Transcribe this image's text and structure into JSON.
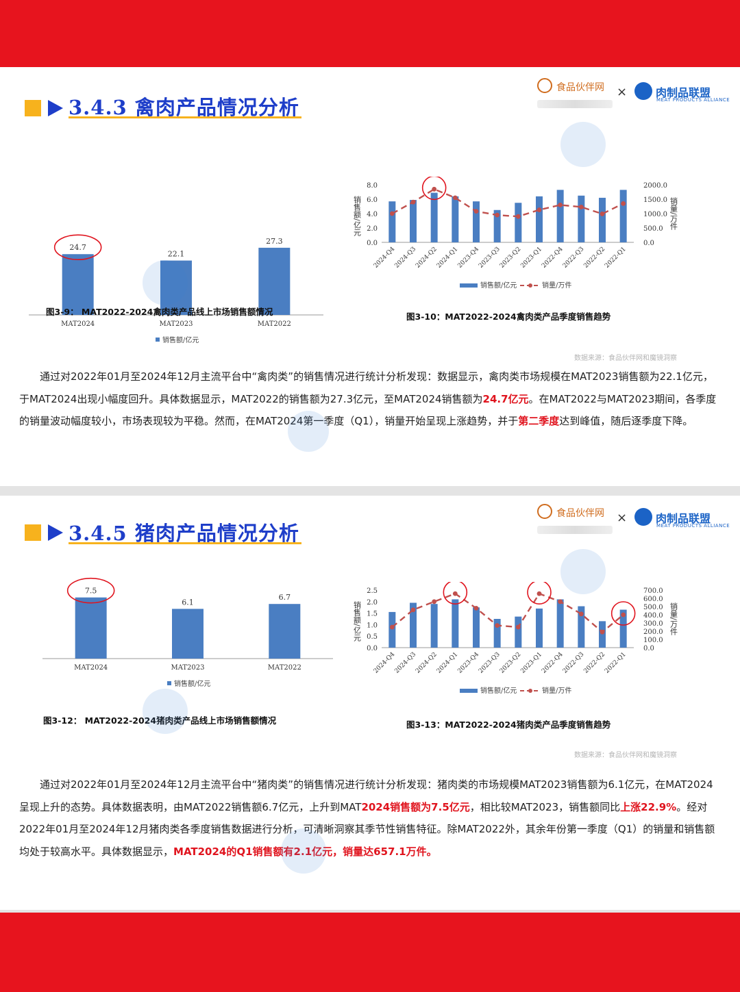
{
  "brand": {
    "partner1": "食品伙伴网",
    "partner2": "肉制品联盟",
    "partner2_en": "MEAT PRODUCTS ALLIANCE",
    "cross": "×"
  },
  "sections": [
    {
      "title": "3.4.3 禽肉产品情况分析",
      "bar_caption": "图3-9： MAT2022-2024禽肉类产品线上市场销售额情况",
      "trend_caption": "图3-10：MAT2022-2024禽肉类产品季度销售趋势",
      "source": "数据来源：食品伙伴网和魔镜洞察"
    },
    {
      "title": "3.4.5 猪肉产品情况分析",
      "bar_caption": "图3-12： MAT2022-2024猪肉类产品线上市场销售额情况",
      "trend_caption": "图3-13：MAT2022-2024猪肉类产品季度销售趋势",
      "source": "数据来源：食品伙伴网和魔镜洞察"
    }
  ],
  "paragraphs": {
    "poultry": [
      {
        "t": "通过对2022年01月至2024年12月主流平台中“禽肉类”的销售情况进行统计分析发现：数据显示，禽肉类市场规模在MAT2023销售额为22.1亿元，于MAT2024出现小幅度回升。具体数据显示，MAT2022的销售额为27.3亿元，至MAT2024销售额为"
      },
      {
        "t": "24.7亿元",
        "red": true
      },
      {
        "t": "。在MAT2022与MAT2023期间，各季度的销量波动幅度较小，市场表现较为平稳。然而，在MAT2024第一季度（Q1），销量开始呈现上涨趋势，并于"
      },
      {
        "t": "第二季度",
        "red": true
      },
      {
        "t": "达到峰值，随后逐季度下降。"
      }
    ],
    "pork": [
      {
        "t": "通过对2022年01月至2024年12月主流平台中“猪肉类”的销售情况进行统计分析发现：猪肉类的市场规模MAT2023销售额为6.1亿元，在MAT2024呈现上升的态势。具体数据表明，由MAT2022销售额6.7亿元，上升到MAT"
      },
      {
        "t": "2024销售额为7.5亿元",
        "red": true
      },
      {
        "t": "，相比较MAT2023，销售额同比"
      },
      {
        "t": "上涨22.9%",
        "red": true
      },
      {
        "t": "。经对2022年01月至2024年12月猪肉类各季度销售数据进行分析，可清晰洞察其季节性销售特征。除MAT2022外，其余年份第一季度（Q1）的销量和销售额均处于较高水平。具体数据显示，"
      },
      {
        "t": "MAT2024的Q1销售额有2.1亿元，销量达657.1万件。",
        "red": true
      }
    ]
  },
  "chart_data": [
    {
      "type": "bar",
      "categories": [
        "MAT2024",
        "MAT2023",
        "MAT2022"
      ],
      "values": [
        24.7,
        22.1,
        27.3
      ],
      "legend": "销售额/亿元",
      "highlight": [
        "MAT2024"
      ],
      "color": "#4a7ec2"
    },
    {
      "type": "bar+line",
      "categories": [
        "2024-Q4",
        "2024-Q3",
        "2024-Q2",
        "2024-Q1",
        "2023-Q4",
        "2023-Q3",
        "2023-Q2",
        "2023-Q1",
        "2022-Q4",
        "2022-Q3",
        "2022-Q2",
        "2022-Q1"
      ],
      "series": [
        {
          "name": "销售额/亿元",
          "type": "bar",
          "axis": "left",
          "values": [
            5.7,
            5.9,
            6.9,
            6.4,
            5.7,
            4.5,
            5.5,
            6.4,
            7.3,
            6.5,
            6.2,
            7.3
          ]
        },
        {
          "name": "销量/万件",
          "type": "line",
          "axis": "right",
          "values": [
            1000,
            1400,
            1850,
            1550,
            1080,
            950,
            900,
            1130,
            1300,
            1230,
            990,
            1350
          ]
        }
      ],
      "ylabel": "销售额/亿元",
      "y2label": "销量/万件",
      "yticks": [
        "0.0",
        "2.0",
        "4.0",
        "6.0",
        "8.0"
      ],
      "y2ticks": [
        "0.0",
        "500.0",
        "1000.0",
        "1500.0",
        "2000.0"
      ],
      "ylim": [
        0,
        8
      ],
      "y2lim": [
        0,
        2000
      ],
      "highlight": [
        "2024-Q2"
      ],
      "colors": {
        "bar": "#4a7ec2",
        "line": "#c0504d"
      }
    },
    {
      "type": "bar",
      "categories": [
        "MAT2024",
        "MAT2023",
        "MAT2022"
      ],
      "values": [
        7.5,
        6.1,
        6.7
      ],
      "legend": "销售额/亿元",
      "highlight": [
        "MAT2024"
      ],
      "color": "#4a7ec2"
    },
    {
      "type": "bar+line",
      "categories": [
        "2024-Q4",
        "2024-Q3",
        "2024-Q2",
        "2024-Q1",
        "2023-Q4",
        "2023-Q3",
        "2023-Q2",
        "2023-Q1",
        "2022-Q4",
        "2022-Q3",
        "2022-Q2",
        "2022-Q1"
      ],
      "series": [
        {
          "name": "销售额/亿元",
          "type": "bar",
          "axis": "left",
          "values": [
            1.55,
            1.95,
            1.9,
            2.1,
            1.75,
            1.25,
            1.35,
            1.7,
            2.1,
            1.8,
            1.15,
            1.65
          ]
        },
        {
          "name": "销量/万件",
          "type": "line",
          "axis": "right",
          "values": [
            250,
            460,
            560,
            657.1,
            480,
            270,
            250,
            657,
            560,
            410,
            190,
            400
          ]
        }
      ],
      "ylabel": "销售额/亿元",
      "y2label": "销量/万件",
      "yticks": [
        "0.0",
        "0.5",
        "1.0",
        "1.5",
        "2.0",
        "2.5"
      ],
      "y2ticks": [
        "0.0",
        "100.0",
        "200.0",
        "300.0",
        "400.0",
        "500.0",
        "600.0",
        "700.0"
      ],
      "ylim": [
        0,
        2.5
      ],
      "y2lim": [
        0,
        700
      ],
      "highlight": [
        "2024-Q1",
        "2023-Q1",
        "2022-Q1"
      ],
      "colors": {
        "bar": "#4a7ec2",
        "line": "#c0504d"
      }
    }
  ]
}
